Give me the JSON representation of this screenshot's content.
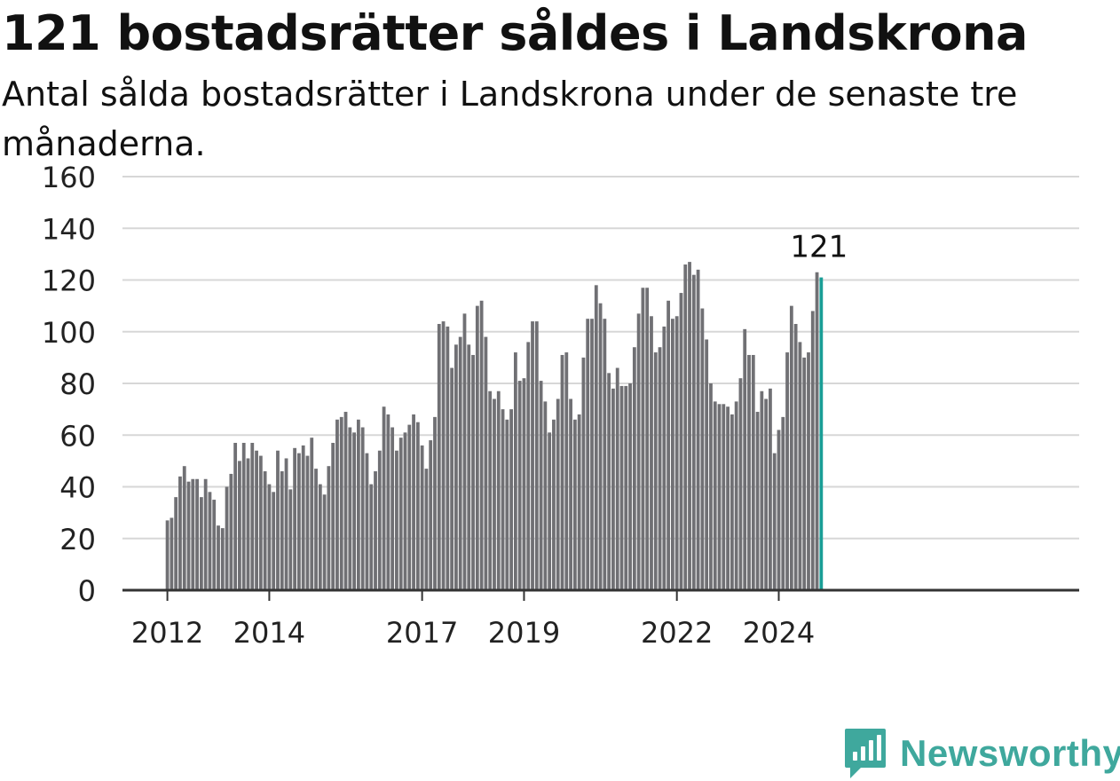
{
  "header": {
    "title": "121 bostadsrätter såldes i Landskrona",
    "subtitle": "Antal sålda bostadsrätter i Landskrona under de senaste tre månaderna."
  },
  "brand": {
    "name": "Newsworthy",
    "icon": "newsworthy-logo-icon",
    "color": "#3fa89d"
  },
  "colors": {
    "bar": "#707074",
    "highlight": "#1a9e96",
    "grid": "#d7d7d7",
    "axis": "#333333"
  },
  "chart_data": {
    "type": "bar",
    "title": "121 bostadsrätter såldes i Landskrona",
    "subtitle": "Antal sålda bostadsrätter i Landskrona under de senaste tre månaderna.",
    "xlabel": "",
    "ylabel": "",
    "ylim": [
      0,
      160
    ],
    "yticks": [
      0,
      20,
      40,
      60,
      80,
      100,
      120,
      140,
      160
    ],
    "grid": true,
    "x_start": "2012-01",
    "x_tick_labels": [
      "2012",
      "2014",
      "2017",
      "2019",
      "2022",
      "2024"
    ],
    "last_value_label": "121",
    "values": [
      27,
      28,
      36,
      44,
      48,
      42,
      43,
      43,
      36,
      43,
      38,
      35,
      25,
      24,
      40,
      45,
      57,
      50,
      57,
      51,
      57,
      54,
      52,
      46,
      41,
      38,
      54,
      46,
      51,
      39,
      55,
      53,
      56,
      52,
      59,
      47,
      41,
      37,
      48,
      57,
      66,
      67,
      69,
      63,
      61,
      66,
      63,
      53,
      41,
      46,
      54,
      71,
      68,
      63,
      54,
      59,
      61,
      64,
      68,
      65,
      56,
      47,
      58,
      67,
      103,
      104,
      102,
      86,
      95,
      98,
      107,
      95,
      91,
      110,
      112,
      98,
      77,
      74,
      77,
      70,
      66,
      70,
      92,
      81,
      82,
      96,
      104,
      104,
      81,
      73,
      61,
      66,
      74,
      91,
      92,
      74,
      66,
      68,
      90,
      105,
      105,
      118,
      111,
      105,
      84,
      78,
      86,
      79,
      79,
      80,
      94,
      107,
      117,
      117,
      106,
      92,
      94,
      102,
      112,
      105,
      106,
      115,
      126,
      127,
      122,
      124,
      109,
      97,
      80,
      73,
      72,
      72,
      71,
      68,
      73,
      82,
      101,
      91,
      91,
      69,
      77,
      74,
      78,
      53,
      62,
      67,
      92,
      110,
      103,
      96,
      90,
      92,
      108,
      123,
      121
    ]
  }
}
